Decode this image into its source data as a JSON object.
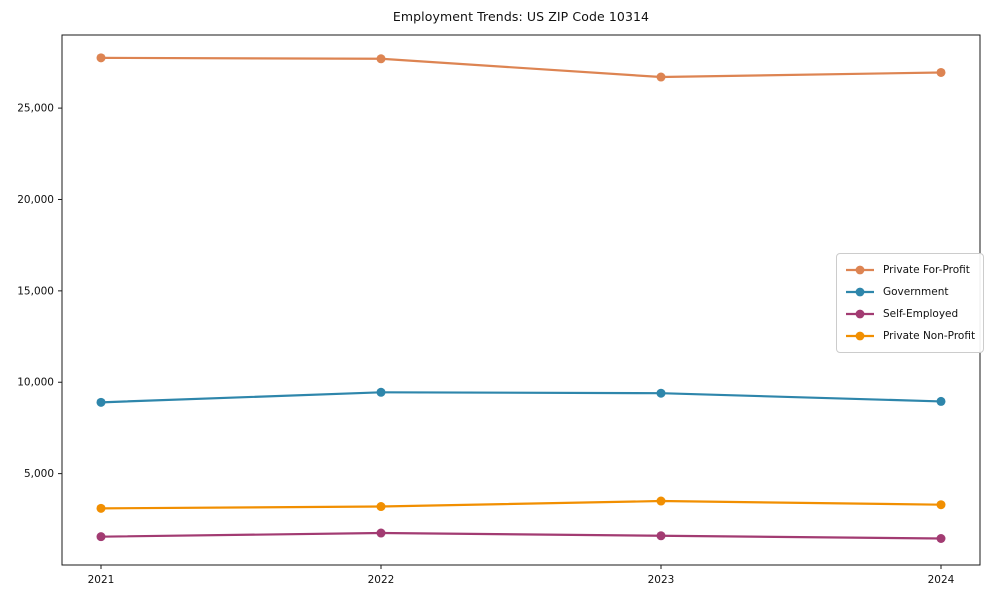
{
  "title": "Employment Trends: US ZIP Code 10314",
  "chart_data": {
    "type": "line",
    "title": "Employment Trends: US ZIP Code 10314",
    "xlabel": "",
    "ylabel": "",
    "x": [
      2021,
      2022,
      2023,
      2024
    ],
    "xtick_labels": [
      "2021",
      "2022",
      "2023",
      "2024"
    ],
    "yticks": [
      5000,
      10000,
      15000,
      20000,
      25000
    ],
    "ytick_labels": [
      "5,000",
      "10,000",
      "15,000",
      "20,000",
      "25,000"
    ],
    "ylim": [
      0,
      29000
    ],
    "grid": false,
    "marker": "circle",
    "legend_position": "center right",
    "axis_color": "#1a1a1a",
    "series": [
      {
        "name": "Private For-Profit",
        "color": "#dd8452",
        "values": [
          27750,
          27700,
          26700,
          26950
        ]
      },
      {
        "name": "Government",
        "color": "#2e86ab",
        "values": [
          8900,
          9450,
          9400,
          8950
        ]
      },
      {
        "name": "Self-Employed",
        "color": "#a23b72",
        "values": [
          1550,
          1750,
          1600,
          1450
        ]
      },
      {
        "name": "Private Non-Profit",
        "color": "#f18f01",
        "values": [
          3100,
          3200,
          3500,
          3300
        ]
      }
    ]
  }
}
